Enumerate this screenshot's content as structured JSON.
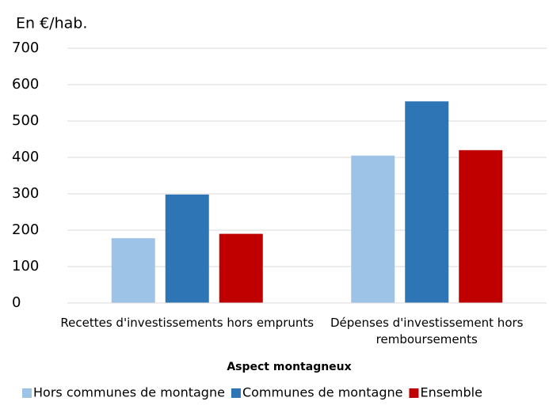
{
  "chart_data": {
    "type": "bar",
    "unit_label": "En €/hab.",
    "x_label": "Aspect montagneux",
    "categories": [
      "Recettes d'investissements hors emprunts",
      "Dépenses d'investissement hors remboursements"
    ],
    "series": [
      {
        "name": "Hors communes de montagne",
        "color": "#9dc3e6",
        "values": [
          178,
          405
        ]
      },
      {
        "name": "Communes de montagne",
        "color": "#2e75b6",
        "values": [
          298,
          554
        ]
      },
      {
        "name": "Ensemble",
        "color": "#c00000",
        "values": [
          190,
          420
        ]
      }
    ],
    "ylim": [
      0,
      700
    ],
    "yticks": [
      0,
      100,
      200,
      300,
      400,
      500,
      600,
      700
    ],
    "grid": true,
    "legend": "bottom"
  }
}
